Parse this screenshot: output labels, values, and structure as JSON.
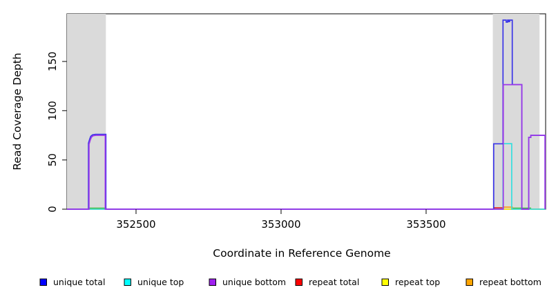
{
  "figure": {
    "xlabel": "Coordinate in Reference Genome",
    "ylabel": "Read Coverage Depth"
  },
  "chart_data": {
    "type": "line",
    "title": "",
    "xlabel": "Coordinate in Reference Genome",
    "ylabel": "Read Coverage Depth",
    "xlim": [
      352262,
      353912
    ],
    "ylim": [
      0,
      198.4
    ],
    "grid": false,
    "background": "#ffffff",
    "band_color": "#dadada",
    "frame_color": "#2b2b2b",
    "x_ticks": [
      {
        "value": 352500,
        "label": "352500"
      },
      {
        "value": 353000,
        "label": "353000"
      },
      {
        "value": 353500,
        "label": "353500"
      }
    ],
    "y_ticks": [
      {
        "value": 0,
        "label": "0"
      },
      {
        "value": 50,
        "label": "50"
      },
      {
        "value": 100,
        "label": "100"
      },
      {
        "value": 150,
        "label": "150"
      }
    ],
    "shaded_regions": [
      {
        "from": 352262,
        "to": 352396
      },
      {
        "from": 353730,
        "to": 353891
      }
    ],
    "series": [
      {
        "name": "unlabeled green",
        "color": "#3cbb3c",
        "in_legend": false,
        "points": [
          [
            352262,
            0
          ],
          [
            352341,
            0
          ],
          [
            352341,
            1
          ],
          [
            352396,
            1
          ],
          [
            352396,
            0
          ],
          [
            353797,
            0
          ],
          [
            353797,
            1
          ],
          [
            353860,
            1
          ],
          [
            353860,
            0
          ],
          [
            353912,
            0
          ]
        ]
      },
      {
        "name": "repeat total",
        "color": "#e03030",
        "in_legend": true,
        "points": [
          [
            352262,
            0
          ],
          [
            353736,
            0
          ],
          [
            353736,
            1.4
          ],
          [
            353765,
            1.4
          ],
          [
            353765,
            0
          ],
          [
            353912,
            0
          ]
        ]
      },
      {
        "name": "repeat top",
        "color": "#f5f520",
        "in_legend": true,
        "points": [
          [
            352262,
            0
          ],
          [
            353912,
            0
          ]
        ]
      },
      {
        "name": "repeat bottom",
        "color": "#ff9d1e",
        "in_legend": true,
        "points": [
          [
            352262,
            0
          ],
          [
            353765,
            0
          ],
          [
            353765,
            2.1
          ],
          [
            353797,
            2.1
          ],
          [
            353797,
            0
          ],
          [
            353912,
            0
          ]
        ]
      },
      {
        "name": "unique top",
        "color": "#35dede",
        "in_legend": true,
        "points": [
          [
            352262,
            0
          ],
          [
            353765,
            0
          ],
          [
            353765,
            66.5
          ],
          [
            353795,
            66.5
          ],
          [
            353795,
            0
          ],
          [
            353912,
            0
          ]
        ]
      },
      {
        "name": "unique total",
        "color": "#3a35e8",
        "in_legend": true,
        "points": [
          [
            352262,
            0
          ],
          [
            352336,
            0
          ],
          [
            352336,
            67
          ],
          [
            352340,
            71
          ],
          [
            352344,
            74
          ],
          [
            352350,
            75.5
          ],
          [
            352360,
            76
          ],
          [
            352396,
            76
          ],
          [
            352396,
            0
          ],
          [
            353733,
            0
          ],
          [
            353733,
            66.4
          ],
          [
            353765,
            66.4
          ],
          [
            353765,
            192
          ],
          [
            353776,
            192
          ],
          [
            353776,
            190
          ],
          [
            353781,
            190
          ],
          [
            353781,
            192
          ],
          [
            353785,
            192
          ],
          [
            353785,
            190.5
          ],
          [
            353788,
            190.5
          ],
          [
            353788,
            192
          ],
          [
            353797,
            192
          ],
          [
            353797,
            126.5
          ],
          [
            353830,
            126.5
          ],
          [
            353830,
            0
          ],
          [
            353854,
            0
          ],
          [
            353854,
            73
          ],
          [
            353861,
            73
          ],
          [
            353861,
            75
          ],
          [
            353910,
            75
          ],
          [
            353910,
            0
          ]
        ]
      },
      {
        "name": "unique bottom",
        "color": "#9b37e8",
        "in_legend": true,
        "points": [
          [
            352262,
            0
          ],
          [
            352338,
            0
          ],
          [
            352338,
            66
          ],
          [
            352342,
            70
          ],
          [
            352346,
            73
          ],
          [
            352352,
            74.5
          ],
          [
            352362,
            75
          ],
          [
            352394,
            75
          ],
          [
            352394,
            0
          ],
          [
            353766,
            0
          ],
          [
            353766,
            126.5
          ],
          [
            353830,
            126.5
          ],
          [
            353830,
            0
          ],
          [
            353854,
            0
          ],
          [
            353854,
            73
          ],
          [
            353861,
            73
          ],
          [
            353861,
            75
          ],
          [
            353910,
            75
          ],
          [
            353910,
            0
          ]
        ]
      }
    ],
    "legend": {
      "position": "bottom",
      "entries": [
        {
          "label": "unique total",
          "color": "#0000ff"
        },
        {
          "label": "unique top",
          "color": "#00ffff"
        },
        {
          "label": "unique bottom",
          "color": "#a020f0"
        },
        {
          "label": "repeat total",
          "color": "#ff0000"
        },
        {
          "label": "repeat top",
          "color": "#ffff00"
        },
        {
          "label": "repeat bottom",
          "color": "#ffa500"
        }
      ]
    }
  }
}
